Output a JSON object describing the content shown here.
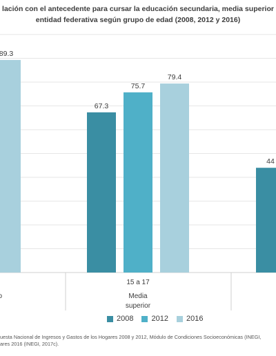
{
  "title": {
    "line1": "lación con el antecedente para cursar la educación secundaria, media superior",
    "line2": "entidad federativa según grupo de edad (2008, 2012 y 2016)"
  },
  "colors": {
    "s2008": "#3a8ea3",
    "s2012": "#4fb0c8",
    "s2016": "#a8d0dd",
    "grid": "#e6e6e6",
    "axis": "#cfcfcf"
  },
  "chart_data": {
    "type": "bar",
    "ylim": [
      0,
      100
    ],
    "categories": [
      {
        "age": "",
        "level": "",
        "level2": ""
      },
      {
        "age": "15 a 17",
        "level": "Media",
        "level2": "superior"
      },
      {
        "age": "",
        "level": "",
        "level2": ""
      }
    ],
    "series": [
      {
        "name": "2008",
        "values": [
          null,
          67.3,
          44
        ],
        "labels": [
          "",
          "67.3",
          "44"
        ]
      },
      {
        "name": "2012",
        "values": [
          null,
          75.7,
          null
        ],
        "labels": [
          "",
          "75.7",
          ""
        ]
      },
      {
        "name": "2016",
        "values": [
          89.3,
          79.4,
          null
        ],
        "labels": [
          "89.3",
          "79.4",
          ""
        ]
      }
    ],
    "partial_labels": {
      "left": "o"
    }
  },
  "source": {
    "line1": "uesta Nacional de Ingresos y Gastos de los Hogares 2008 y 2012, Módulo de Condiciones Socioeconómicas (INEGI,",
    "line2": "ares 2016 (INEGI, 2017c)."
  }
}
